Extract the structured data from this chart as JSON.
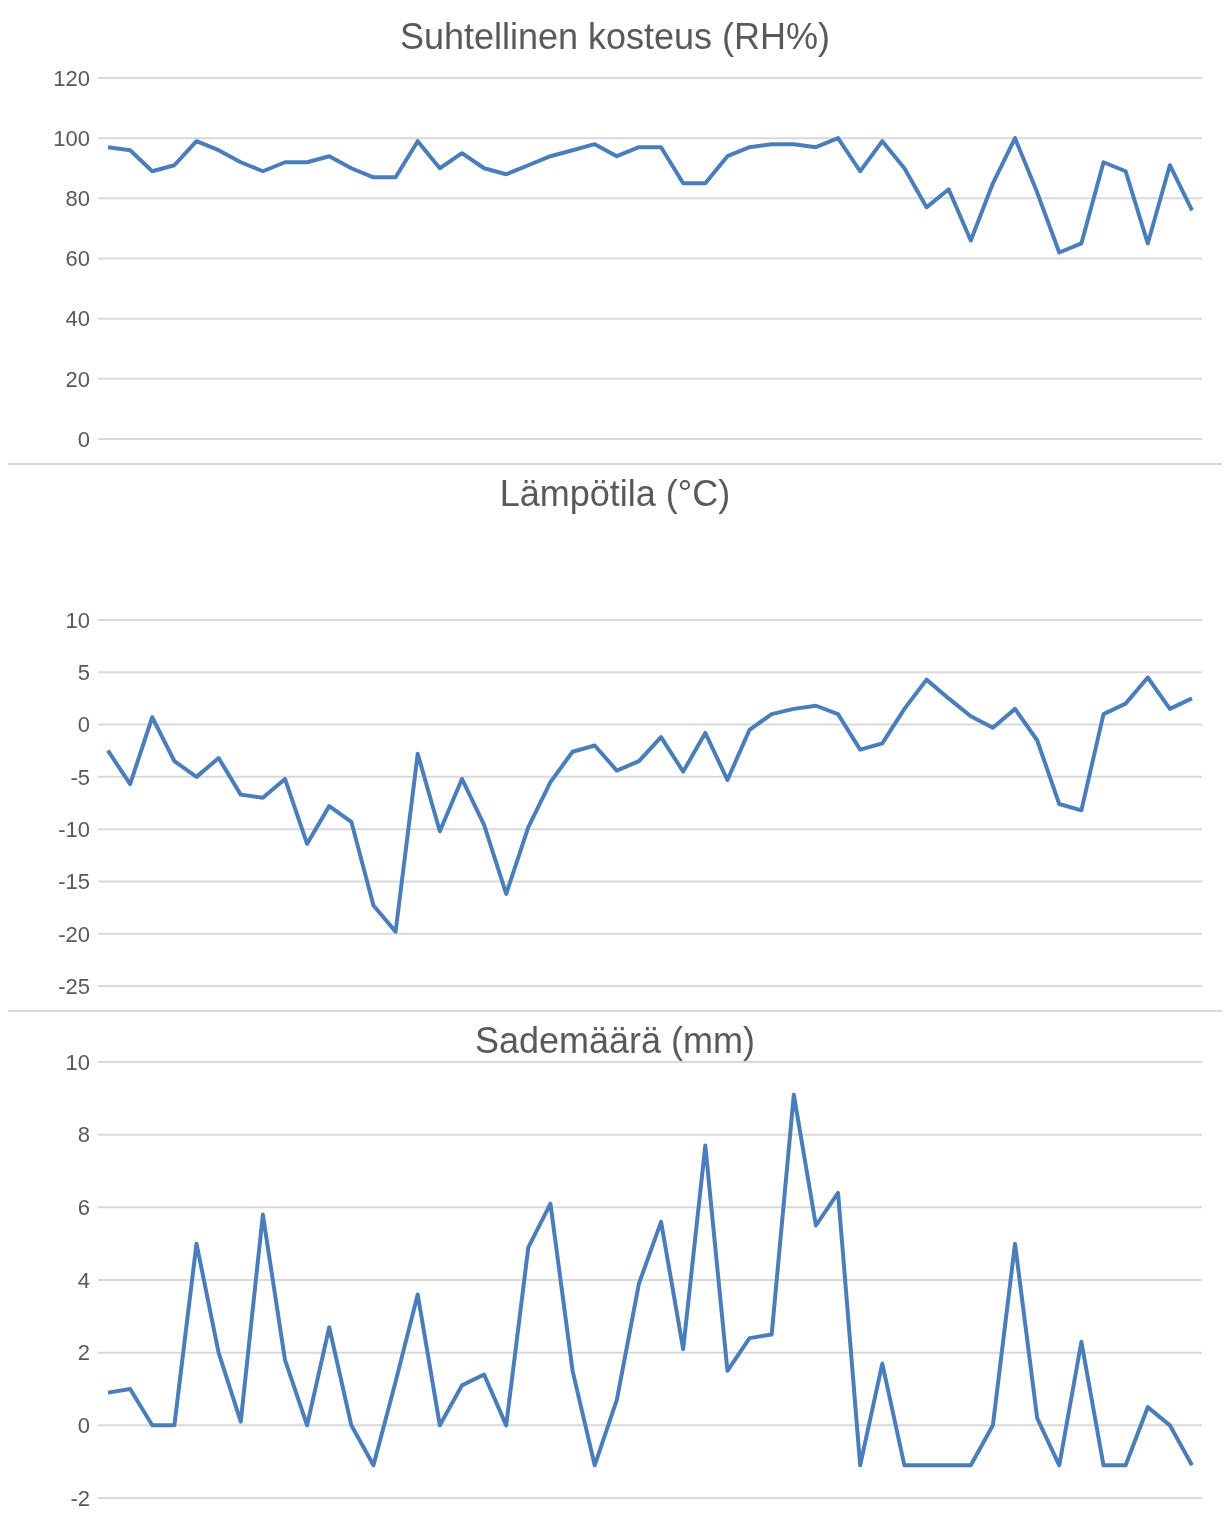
{
  "chart_data": [
    {
      "type": "line",
      "title": "Suhtellinen kosteus (RH%)",
      "categories": [
        null,
        null,
        null,
        null,
        null,
        null,
        null,
        null,
        null,
        null,
        null,
        null,
        null,
        null,
        null,
        null,
        null,
        null,
        null,
        null,
        null,
        null,
        null,
        null,
        null,
        null,
        null,
        null,
        null,
        null,
        null,
        null,
        null,
        null,
        null,
        null,
        null,
        null,
        null,
        null,
        null,
        null,
        null,
        null,
        null,
        null,
        null,
        null,
        null,
        null
      ],
      "series": [
        {
          "color": "#4a7ebb",
          "values": [
            97,
            96,
            89,
            91,
            99,
            96,
            92,
            89,
            92,
            92,
            94,
            90,
            87,
            87,
            99,
            90,
            95,
            90,
            88,
            91,
            94,
            96,
            98,
            94,
            97,
            97,
            85,
            85,
            94,
            97,
            98,
            98,
            97,
            100,
            89,
            99,
            90,
            77,
            83,
            66,
            85,
            100,
            82,
            62,
            65,
            92,
            89,
            65,
            91,
            76
          ]
        }
      ],
      "ylim": [
        0,
        120
      ],
      "yticks": [
        0,
        20,
        40,
        60,
        80,
        100,
        120
      ],
      "grid": "y",
      "tick_labels": "y",
      "legend": false,
      "marker": "none",
      "line_style": "solid"
    },
    {
      "type": "line",
      "title": "Lämpötila (°C)",
      "categories": [
        null,
        null,
        null,
        null,
        null,
        null,
        null,
        null,
        null,
        null,
        null,
        null,
        null,
        null,
        null,
        null,
        null,
        null,
        null,
        null,
        null,
        null,
        null,
        null,
        null,
        null,
        null,
        null,
        null,
        null,
        null,
        null,
        null,
        null,
        null,
        null,
        null,
        null,
        null,
        null,
        null,
        null,
        null,
        null,
        null,
        null,
        null,
        null,
        null,
        null
      ],
      "series": [
        {
          "color": "#4a7ebb",
          "values": [
            -2.5,
            -5.7,
            0.7,
            -3.5,
            -5,
            -3.2,
            -6.7,
            -7,
            -5.2,
            -11.4,
            -7.8,
            -9.3,
            -17.3,
            -19.8,
            -2.8,
            -10.2,
            -5.2,
            -9.6,
            -16.2,
            -9.8,
            -5.5,
            -2.6,
            -2,
            -4.4,
            -3.5,
            -1.2,
            -4.5,
            -0.8,
            -5.3,
            -0.5,
            1,
            1.5,
            1.8,
            1,
            -2.4,
            -1.8,
            1.5,
            4.3,
            2.5,
            0.8,
            -0.3,
            1.5,
            -1.5,
            -7.6,
            -8.2,
            1,
            2,
            4.5,
            1.5,
            2.5
          ]
        }
      ],
      "ylim": [
        -25,
        10
      ],
      "yticks": [
        -25,
        -20,
        -15,
        -10,
        -5,
        0,
        5,
        10
      ],
      "grid": "y",
      "tick_labels": "y",
      "legend": false,
      "marker": "none",
      "line_style": "solid"
    },
    {
      "type": "line",
      "title": "Sademäärä (mm)",
      "categories": [
        null,
        null,
        null,
        null,
        null,
        null,
        null,
        null,
        null,
        null,
        null,
        null,
        null,
        null,
        null,
        null,
        null,
        null,
        null,
        null,
        null,
        null,
        null,
        null,
        null,
        null,
        null,
        null,
        null,
        null,
        null,
        null,
        null,
        null,
        null,
        null,
        null,
        null,
        null,
        null,
        null,
        null,
        null,
        null,
        null,
        null,
        null,
        null,
        null,
        null
      ],
      "series": [
        {
          "color": "#4a7ebb",
          "values": [
            0.9,
            1.0,
            0,
            0,
            5.0,
            2.0,
            0.1,
            5.8,
            1.8,
            0,
            2.7,
            0,
            -1.1,
            1.2,
            3.6,
            0,
            1.1,
            1.4,
            0,
            4.9,
            6.1,
            1.5,
            -1.1,
            0.7,
            3.9,
            5.6,
            2.1,
            7.7,
            1.5,
            2.4,
            2.5,
            9.1,
            5.5,
            6.4,
            -1.1,
            1.7,
            -1.1,
            -1.1,
            -1.1,
            -1.1,
            0,
            5.0,
            0.2,
            -1.1,
            2.3,
            -1.1,
            -1.1,
            0.5,
            0,
            -1.1
          ]
        }
      ],
      "ylim": [
        -2,
        10
      ],
      "yticks": [
        -2,
        0,
        2,
        4,
        6,
        8,
        10
      ],
      "grid": "y",
      "tick_labels": "y",
      "legend": false,
      "marker": "none",
      "line_style": "solid"
    }
  ]
}
